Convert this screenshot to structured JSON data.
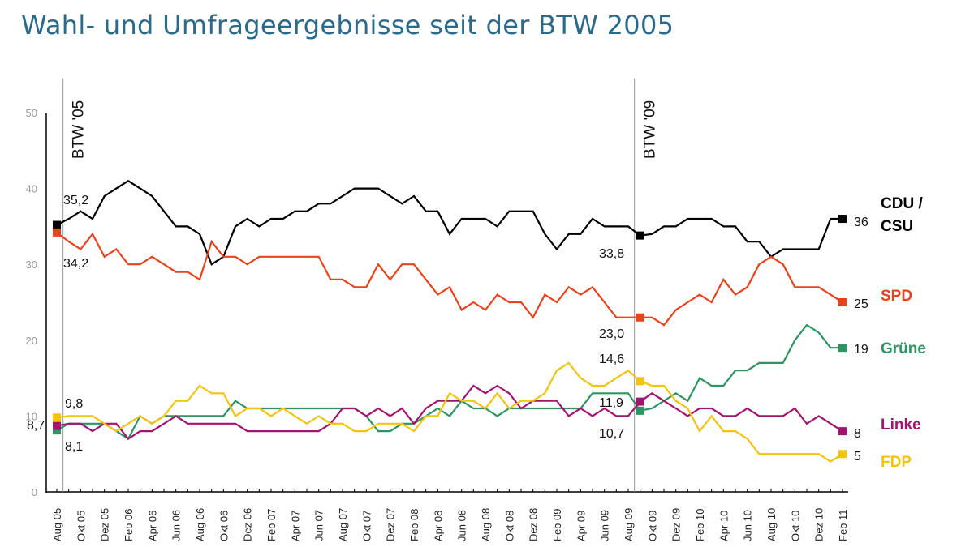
{
  "title": "Wahl- und Umfrageergebnisse seit der BTW 2005",
  "chart_data": {
    "type": "line",
    "title": "Wahl- und Umfrageergebnisse seit der BTW 2005",
    "xlabel": "",
    "ylabel": "",
    "ylim": [
      0,
      50
    ],
    "yticks": [
      "0",
      "10",
      "20",
      "30",
      "40",
      "50"
    ],
    "grid": false,
    "x_tick_labels": [
      "Aug 05",
      "Okt 05",
      "Dez 05",
      "Feb 06",
      "Apr 06",
      "Jun 06",
      "Aug 06",
      "Okt 06",
      "Dez 06",
      "Feb 07",
      "Apr 07",
      "Jun 07",
      "Aug 07",
      "Okt 07",
      "Dez 07",
      "Feb 08",
      "Apr 08",
      "Jun 08",
      "Aug 08",
      "Okt 08",
      "Dez 08",
      "Feb 09",
      "Apr 09",
      "Jun 09",
      "Aug 09",
      "Okt 09",
      "Dez 09",
      "Feb 10",
      "Apr 10",
      "Jun 10",
      "Aug 10",
      "Okt 10",
      "Dez 10",
      "Feb 11"
    ],
    "x_range": [
      "Aug 05",
      "Feb 11"
    ],
    "annotations": [
      {
        "label": "BTW '05",
        "at": "Sep 05"
      },
      {
        "label": "BTW '09",
        "at": "Sep 09"
      }
    ],
    "series": [
      {
        "name": "CDU / CSU",
        "name_lines": [
          "CDU /",
          "CSU"
        ],
        "color": "#000000",
        "values": [
          35.2,
          36,
          37,
          36,
          39,
          40,
          41,
          40,
          39,
          37,
          35,
          35,
          34,
          30,
          31,
          35,
          36,
          35,
          36,
          36,
          37,
          37,
          38,
          38,
          39,
          40,
          40,
          40,
          39,
          38,
          39,
          37,
          37,
          34,
          36,
          36,
          36,
          35,
          37,
          37,
          37,
          34,
          32,
          34,
          34,
          36,
          35,
          35,
          35,
          33.8,
          34,
          35,
          35,
          36,
          36,
          36,
          35,
          35,
          33,
          33,
          31,
          32,
          32,
          32,
          32,
          36,
          36
        ],
        "start_label": "35,2",
        "btw09_label": "33,8",
        "end_label": "36"
      },
      {
        "name": "SPD",
        "color": "#e8431c",
        "values": [
          34.2,
          33,
          32,
          34,
          31,
          32,
          30,
          30,
          31,
          30,
          29,
          29,
          28,
          33,
          31,
          31,
          30,
          31,
          31,
          31,
          31,
          31,
          31,
          28,
          28,
          27,
          27,
          30,
          28,
          30,
          30,
          28,
          26,
          27,
          24,
          25,
          24,
          26,
          25,
          25,
          23,
          26,
          25,
          27,
          26,
          27,
          25,
          23,
          23,
          23.0,
          23,
          22,
          24,
          25,
          26,
          25,
          28,
          26,
          27,
          30,
          31,
          30,
          27,
          27,
          27,
          26,
          25
        ],
        "start_label": "34,2",
        "btw09_label": "23,0",
        "end_label": "25"
      },
      {
        "name": "Grüne",
        "color": "#2e9462",
        "values": [
          8.1,
          9,
          9,
          9,
          9,
          8,
          7,
          10,
          9,
          10,
          10,
          10,
          10,
          10,
          10,
          12,
          11,
          11,
          11,
          11,
          11,
          11,
          11,
          11,
          11,
          11,
          10,
          8,
          8,
          9,
          9,
          10,
          11,
          10,
          12,
          11,
          11,
          10,
          11,
          11,
          11,
          11,
          11,
          11,
          11,
          13,
          13,
          13,
          13,
          10.7,
          11,
          12,
          13,
          12,
          15,
          14,
          14,
          16,
          16,
          17,
          17,
          17,
          20,
          22,
          21,
          19,
          19
        ],
        "start_label": "8,1",
        "btw09_label": "10,7",
        "end_label": "19"
      },
      {
        "name": "Linke",
        "color": "#a3146e",
        "values": [
          8.7,
          9,
          9,
          8,
          9,
          9,
          7,
          8,
          8,
          9,
          10,
          9,
          9,
          9,
          9,
          9,
          8,
          8,
          8,
          8,
          8,
          8,
          8,
          9,
          11,
          11,
          10,
          11,
          10,
          11,
          9,
          11,
          12,
          12,
          12,
          14,
          13,
          14,
          13,
          11,
          12,
          12,
          12,
          10,
          11,
          10,
          11,
          10,
          10,
          11.9,
          13,
          12,
          11,
          10,
          11,
          11,
          10,
          10,
          11,
          10,
          10,
          10,
          11,
          9,
          10,
          9,
          8
        ],
        "start_label": "8,7",
        "btw09_label": "11,9",
        "end_label": "8"
      },
      {
        "name": "FDP",
        "color": "#f2c40c",
        "values": [
          9.8,
          10,
          10,
          10,
          9,
          8,
          9,
          10,
          9,
          10,
          12,
          12,
          14,
          13,
          13,
          10,
          11,
          11,
          10,
          11,
          10,
          9,
          10,
          9,
          9,
          8,
          8,
          9,
          9,
          9,
          8,
          10,
          10,
          13,
          12,
          12,
          11,
          13,
          11,
          12,
          12,
          13,
          16,
          17,
          15,
          14,
          14,
          15,
          16,
          14.6,
          14,
          14,
          12,
          11,
          8,
          10,
          8,
          8,
          7,
          5,
          5,
          5,
          5,
          5,
          5,
          4,
          5
        ],
        "start_label": "9,8",
        "btw09_label": "14,6",
        "end_label": "5"
      }
    ]
  }
}
